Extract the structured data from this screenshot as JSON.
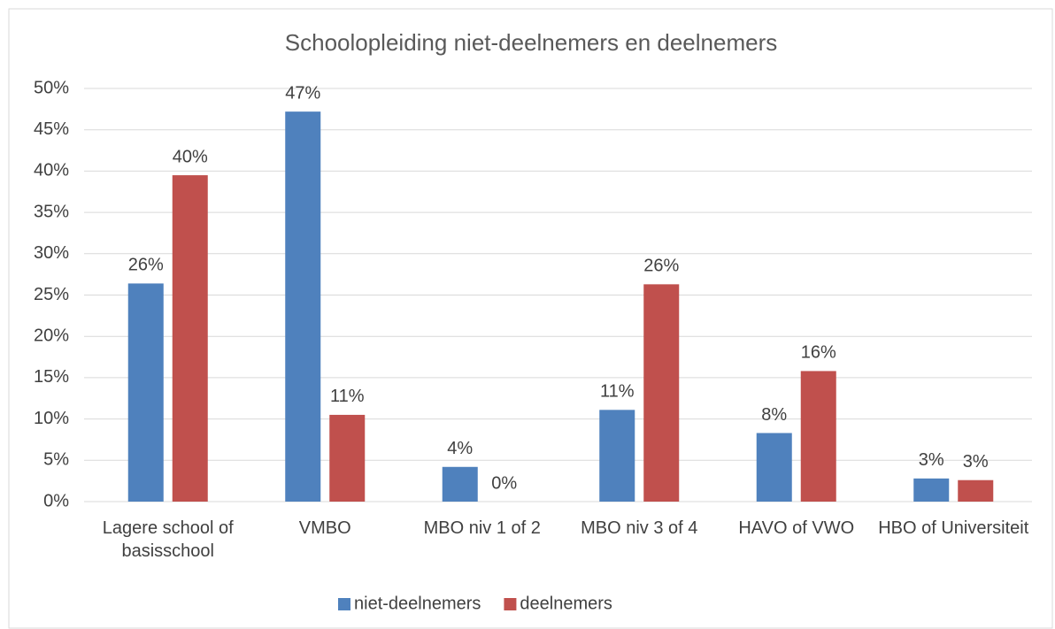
{
  "chart_data": {
    "type": "bar",
    "title": "Schoolopleiding niet-deelnemers en deelnemers",
    "categories": [
      "Lagere school of basisschool",
      "VMBO",
      "MBO niv 1 of 2",
      "MBO niv 3 of 4",
      "HAVO of VWO",
      "HBO of Universiteit"
    ],
    "series": [
      {
        "name": "niet-deelnemers",
        "color": "#4f81bd",
        "values": [
          26.4,
          47.2,
          4.2,
          11.1,
          8.3,
          2.8
        ],
        "value_labels": [
          "26%",
          "47%",
          "4%",
          "11%",
          "8%",
          "3%"
        ]
      },
      {
        "name": "deelnemers",
        "color": "#c0504d",
        "values": [
          39.5,
          10.5,
          0,
          26.3,
          15.8,
          2.6
        ],
        "value_labels": [
          "40%",
          "11%",
          "0%",
          "26%",
          "16%",
          "3%"
        ]
      }
    ],
    "ylim": [
      0,
      50
    ],
    "yticks": [
      {
        "value": 0,
        "label": "0%"
      },
      {
        "value": 5,
        "label": "5%"
      },
      {
        "value": 10,
        "label": "10%"
      },
      {
        "value": 15,
        "label": "15%"
      },
      {
        "value": 20,
        "label": "20%"
      },
      {
        "value": 25,
        "label": "25%"
      },
      {
        "value": 30,
        "label": "30%"
      },
      {
        "value": 35,
        "label": "35%"
      },
      {
        "value": 40,
        "label": "40%"
      },
      {
        "value": 45,
        "label": "45%"
      },
      {
        "value": 50,
        "label": "50%"
      }
    ],
    "grid": true,
    "legend": "bottom"
  }
}
